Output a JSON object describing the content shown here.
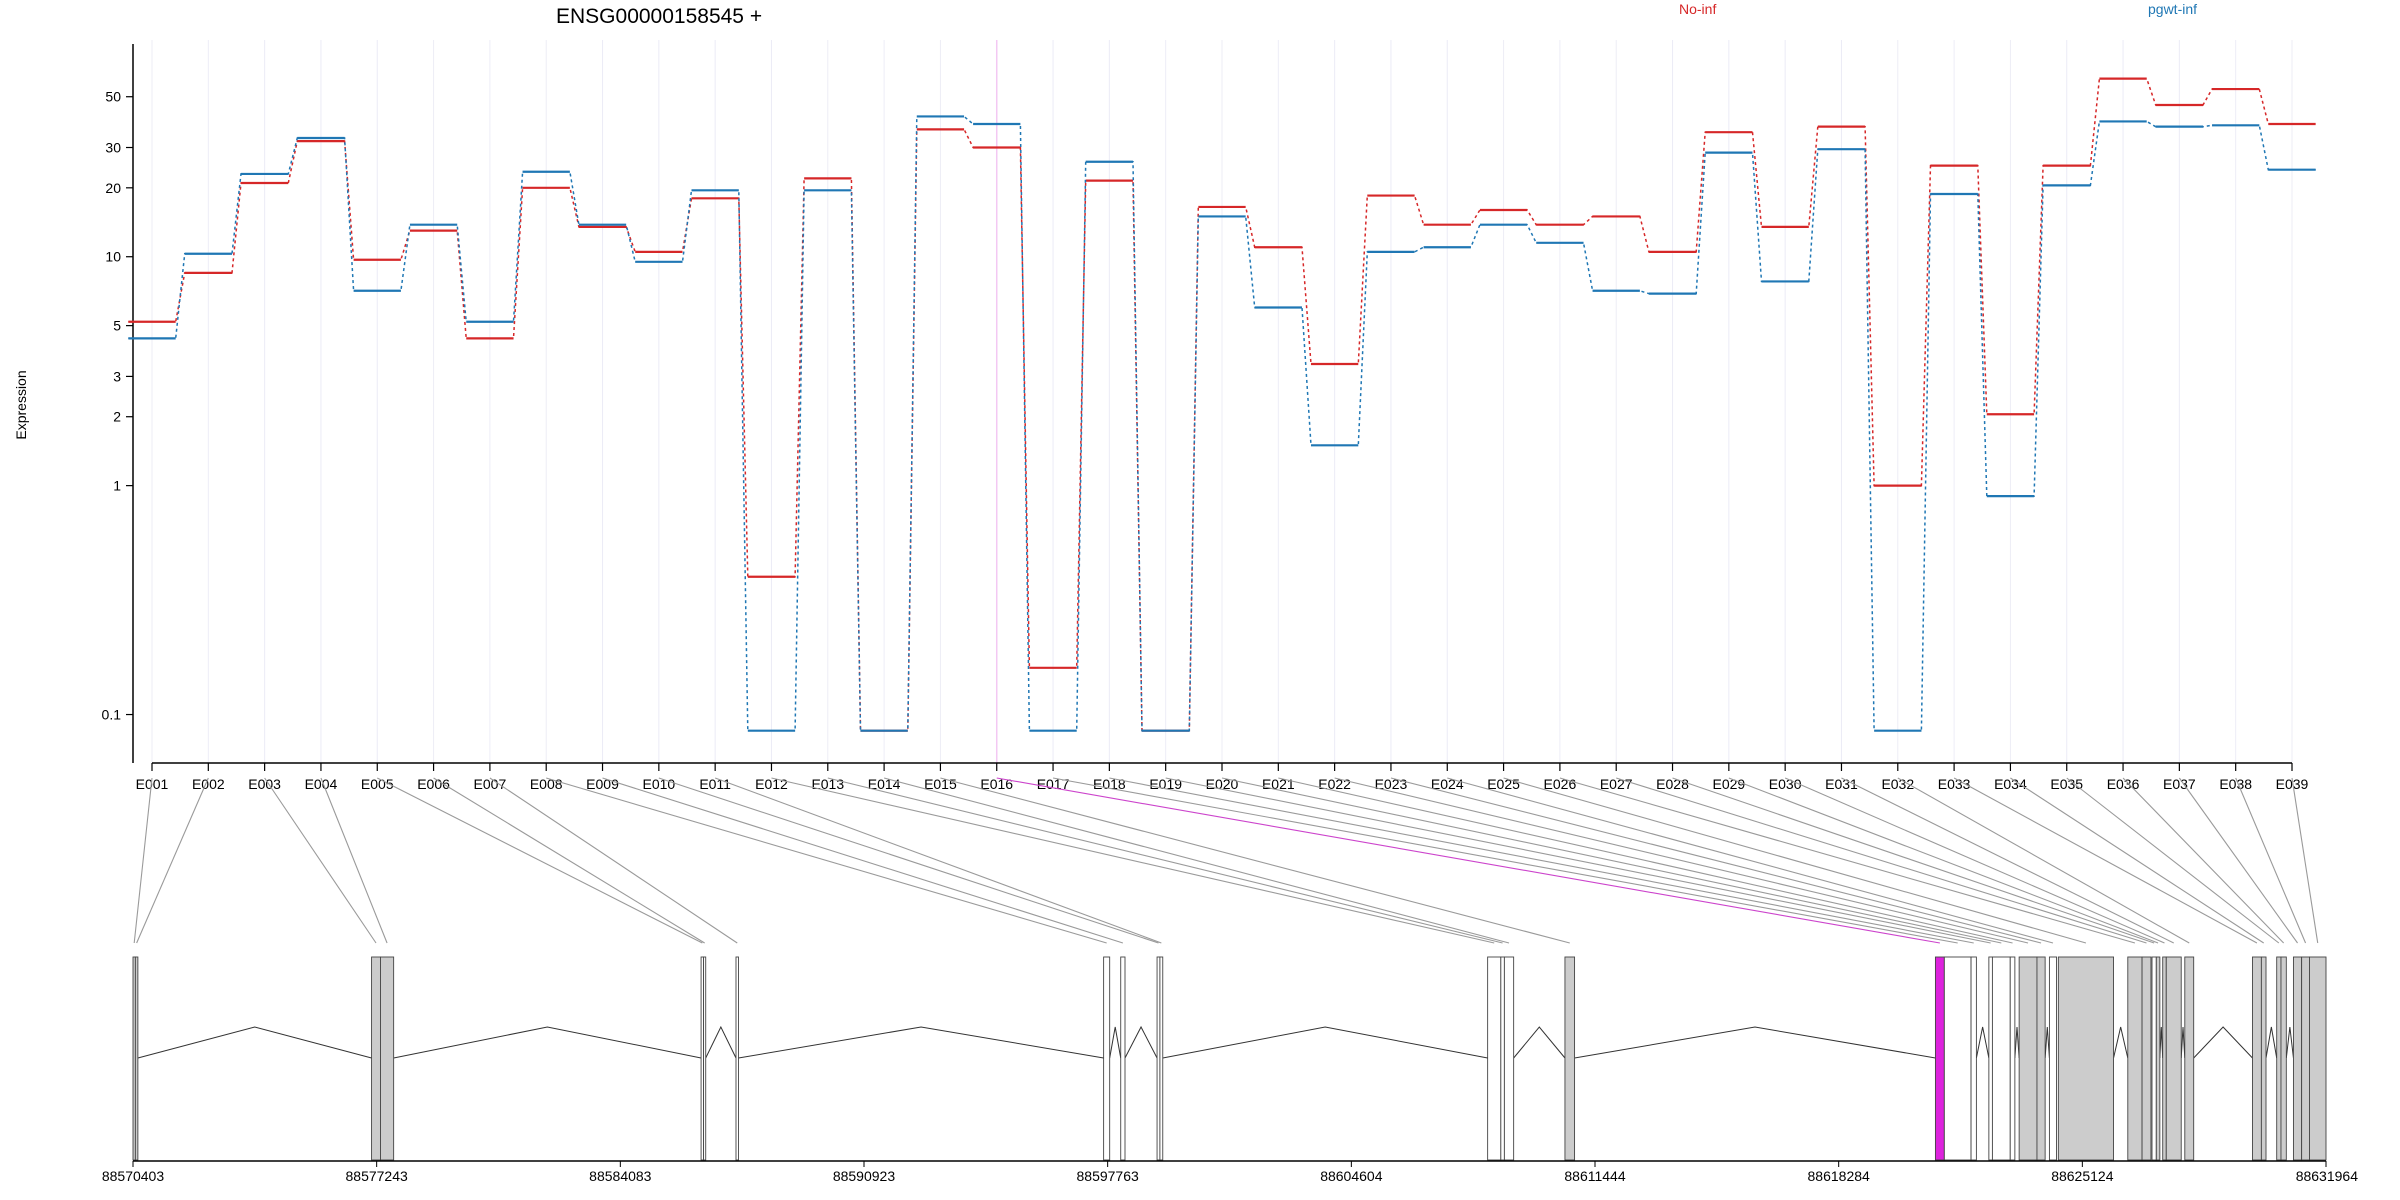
{
  "chart_data": {
    "type": "line",
    "title": "ENSG00000158545 +",
    "ylabel": "Expression",
    "yscale": "log",
    "ylim": [
      0.07,
      80
    ],
    "yticks": [
      0.1,
      1,
      2,
      3,
      5,
      10,
      20,
      30,
      50
    ],
    "categories": [
      "E001",
      "E002",
      "E003",
      "E004",
      "E005",
      "E006",
      "E007",
      "E008",
      "E009",
      "E010",
      "E011",
      "E012",
      "E013",
      "E014",
      "E015",
      "E016",
      "E017",
      "E018",
      "E019",
      "E020",
      "E021",
      "E022",
      "E023",
      "E024",
      "E025",
      "E026",
      "E027",
      "E028",
      "E029",
      "E030",
      "E031",
      "E032",
      "E033",
      "E034",
      "E035",
      "E036",
      "E037",
      "E038",
      "E039"
    ],
    "highlighted_category": "E016",
    "legend": {
      "placement": "top-right"
    },
    "series": [
      {
        "name": "No-inf",
        "color": "#d62728",
        "values": [
          5.2,
          8.5,
          21,
          32,
          9.7,
          13,
          4.4,
          20,
          13.5,
          10.5,
          18,
          0.4,
          22,
          0.085,
          36,
          30,
          0.16,
          21.5,
          0.085,
          16.5,
          11,
          3.4,
          18.5,
          13.8,
          16,
          13.8,
          15,
          10.5,
          35,
          13.5,
          37,
          1.0,
          25,
          2.05,
          25,
          60,
          46,
          54,
          38
        ]
      },
      {
        "name": "pgwt-inf",
        "color": "#1f77b4",
        "values": [
          4.4,
          10.3,
          23,
          33,
          7.1,
          13.8,
          5.2,
          23.5,
          13.8,
          9.5,
          19.5,
          0.085,
          19.5,
          0.085,
          41,
          38,
          0.085,
          26,
          0.085,
          15,
          6,
          1.5,
          10.5,
          11,
          13.8,
          11.5,
          7.1,
          6.9,
          28.5,
          7.8,
          29.5,
          0.085,
          18.8,
          0.9,
          20.5,
          39,
          37,
          37.5,
          24
        ]
      }
    ],
    "gene_model": {
      "x_ticks": [
        88570403,
        88577243,
        88584083,
        88590923,
        88597763,
        88604604,
        88611444,
        88618284,
        88625124,
        88631964
      ],
      "xlim": [
        88570403,
        88631964
      ],
      "highlight_color": "#dd22dd",
      "exons": [
        {
          "id": "E001",
          "start": 88570403,
          "end": 88570470,
          "shaded": true
        },
        {
          "id": "E002",
          "start": 88570470,
          "end": 88570540,
          "shaded": true
        },
        {
          "id": "E003",
          "start": 88577100,
          "end": 88577350,
          "shaded": true
        },
        {
          "id": "E004",
          "start": 88577350,
          "end": 88577720,
          "shaded": true
        },
        {
          "id": "E005",
          "start": 88586350,
          "end": 88586420,
          "shaded": false
        },
        {
          "id": "E006",
          "start": 88586420,
          "end": 88586480,
          "shaded": false
        },
        {
          "id": "E007",
          "start": 88587330,
          "end": 88587400,
          "shaded": false
        },
        {
          "id": "E008",
          "start": 88597650,
          "end": 88597820,
          "shaded": false
        },
        {
          "id": "E009",
          "start": 88598130,
          "end": 88598250,
          "shaded": false
        },
        {
          "id": "E010",
          "start": 88599150,
          "end": 88599230,
          "shaded": false
        },
        {
          "id": "E011",
          "start": 88599230,
          "end": 88599310,
          "shaded": false
        },
        {
          "id": "E012",
          "start": 88608430,
          "end": 88608800,
          "shaded": false
        },
        {
          "id": "E013",
          "start": 88608800,
          "end": 88608900,
          "shaded": false
        },
        {
          "id": "E014",
          "start": 88608900,
          "end": 88609160,
          "shaded": false
        },
        {
          "id": "E015",
          "start": 88610600,
          "end": 88610870,
          "shaded": true
        },
        {
          "id": "E016",
          "start": 88621000,
          "end": 88621250,
          "shaded": false
        },
        {
          "id": "E017",
          "start": 88621250,
          "end": 88622000,
          "shaded": false
        },
        {
          "id": "E018",
          "start": 88622000,
          "end": 88622150,
          "shaded": false
        },
        {
          "id": "E019",
          "start": 88622500,
          "end": 88622600,
          "shaded": false
        },
        {
          "id": "E020",
          "start": 88622600,
          "end": 88623100,
          "shaded": false
        },
        {
          "id": "E021",
          "start": 88623100,
          "end": 88623230,
          "shaded": false
        },
        {
          "id": "E022",
          "start": 88623350,
          "end": 88623850,
          "shaded": true
        },
        {
          "id": "E023",
          "start": 88623850,
          "end": 88624080,
          "shaded": true
        },
        {
          "id": "E024",
          "start": 88624200,
          "end": 88624400,
          "shaded": false
        },
        {
          "id": "E025",
          "start": 88624450,
          "end": 88626000,
          "shaded": true
        },
        {
          "id": "E026",
          "start": 88626400,
          "end": 88626800,
          "shaded": true
        },
        {
          "id": "E027",
          "start": 88626800,
          "end": 88627050,
          "shaded": true
        },
        {
          "id": "E028",
          "start": 88627080,
          "end": 88627200,
          "shaded": false
        },
        {
          "id": "E029",
          "start": 88627200,
          "end": 88627300,
          "shaded": true
        },
        {
          "id": "E030",
          "start": 88627380,
          "end": 88627480,
          "shaded": true
        },
        {
          "id": "E031",
          "start": 88627480,
          "end": 88627900,
          "shaded": true
        },
        {
          "id": "E032",
          "start": 88628000,
          "end": 88628250,
          "shaded": true
        },
        {
          "id": "E033",
          "start": 88629900,
          "end": 88630150,
          "shaded": true
        },
        {
          "id": "E034",
          "start": 88630150,
          "end": 88630280,
          "shaded": true
        },
        {
          "id": "E035",
          "start": 88630580,
          "end": 88630700,
          "shaded": true
        },
        {
          "id": "E036",
          "start": 88630700,
          "end": 88630850,
          "shaded": true
        },
        {
          "id": "E037",
          "start": 88631050,
          "end": 88631280,
          "shaded": true
        },
        {
          "id": "E038",
          "start": 88631280,
          "end": 88631500,
          "shaded": true
        },
        {
          "id": "E039",
          "start": 88631500,
          "end": 88631964,
          "shaded": true
        }
      ]
    }
  }
}
